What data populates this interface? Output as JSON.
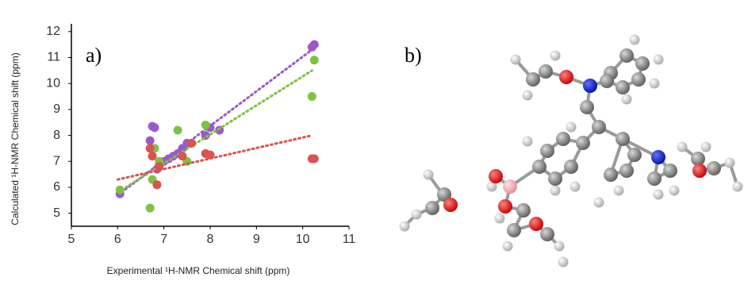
{
  "chart_data": {
    "type": "scatter",
    "panel_label": "a)",
    "xlabel": "Experimental  ¹H-NMR Chemical shift (ppm)",
    "ylabel": "Calculated  ¹H-NMR Chemical shift (ppm)",
    "xlim": [
      5,
      11
    ],
    "xticks": [
      5,
      6,
      7,
      8,
      9,
      10,
      11
    ],
    "ylim": [
      4.5,
      12.3
    ],
    "yticks": [
      5,
      6,
      7,
      8,
      9,
      10,
      11,
      12
    ],
    "series": [
      {
        "color": "#9b59c9",
        "x": [
          6.05,
          6.7,
          6.75,
          6.8,
          6.85,
          6.9,
          7.0,
          7.1,
          7.2,
          7.3,
          7.4,
          7.5,
          7.9,
          8.0,
          8.2,
          10.2,
          10.25
        ],
        "y": [
          5.75,
          7.8,
          8.35,
          8.3,
          6.7,
          6.9,
          7.0,
          7.1,
          7.2,
          7.3,
          7.5,
          7.7,
          8.0,
          8.3,
          8.2,
          11.4,
          11.5
        ],
        "trend": {
          "x": [
            6.0,
            10.2
          ],
          "y": [
            5.7,
            11.3
          ]
        }
      },
      {
        "color": "#7dc242",
        "x": [
          6.05,
          6.7,
          6.75,
          6.8,
          6.9,
          7.3,
          7.5,
          7.9,
          10.2,
          10.25
        ],
        "y": [
          5.9,
          5.2,
          6.3,
          7.5,
          7.0,
          8.2,
          7.0,
          8.4,
          9.5,
          10.9
        ],
        "trend": {
          "x": [
            6.0,
            10.2
          ],
          "y": [
            5.8,
            10.5
          ]
        }
      },
      {
        "color": "#d9534f",
        "x": [
          6.7,
          6.75,
          6.85,
          6.9,
          7.4,
          7.6,
          7.9,
          8.0,
          10.2,
          10.25
        ],
        "y": [
          7.5,
          7.2,
          6.1,
          6.8,
          7.2,
          7.7,
          7.3,
          7.25,
          7.1,
          7.1
        ],
        "trend": {
          "x": [
            6.0,
            10.2
          ],
          "y": [
            6.3,
            8.0
          ]
        }
      }
    ]
  },
  "panel_b_label": "b)"
}
